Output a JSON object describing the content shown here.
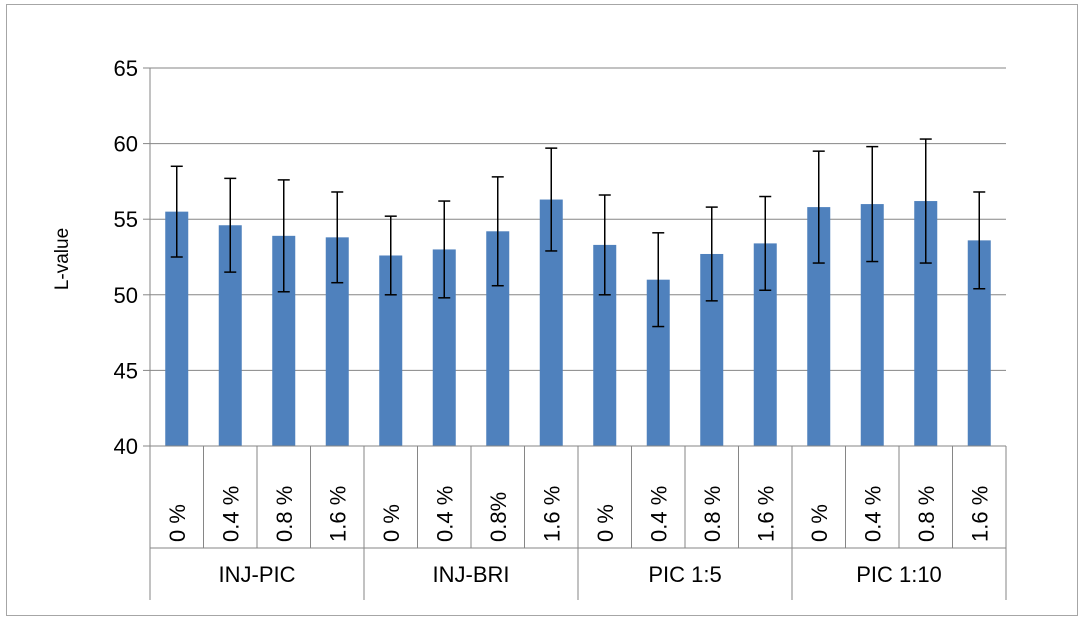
{
  "chart_data": {
    "type": "bar",
    "title": "",
    "xlabel": "",
    "ylabel": "L-value",
    "ylim": [
      40,
      65
    ],
    "yticks": [
      "40",
      "45",
      "50",
      "55",
      "60",
      "65"
    ],
    "grid": true,
    "legend": "none",
    "bar_color": "#4f81bd",
    "groups": [
      {
        "name": "INJ-PIC",
        "categories": [
          "0 %",
          "0.4 %",
          "0.8 %",
          "1.6 %"
        ],
        "values": [
          55.5,
          54.6,
          53.9,
          53.8
        ],
        "errors": [
          3.0,
          3.1,
          3.7,
          3.0
        ]
      },
      {
        "name": "INJ-BRI",
        "categories": [
          "0 %",
          "0.4 %",
          "0.8%",
          "1.6 %"
        ],
        "values": [
          52.6,
          53.0,
          54.2,
          56.3
        ],
        "errors": [
          2.6,
          3.2,
          3.6,
          3.4
        ]
      },
      {
        "name": "PIC 1:5",
        "categories": [
          "0 %",
          "0.4 %",
          "0.8 %",
          "1.6 %"
        ],
        "values": [
          53.3,
          51.0,
          52.7,
          53.4
        ],
        "errors": [
          3.3,
          3.1,
          3.1,
          3.1
        ]
      },
      {
        "name": "PIC 1:10",
        "categories": [
          "0 %",
          "0.4 %",
          "0.8 %",
          "1.6 %"
        ],
        "values": [
          55.8,
          56.0,
          56.2,
          53.6
        ],
        "errors": [
          3.7,
          3.8,
          4.1,
          3.2
        ]
      }
    ]
  }
}
